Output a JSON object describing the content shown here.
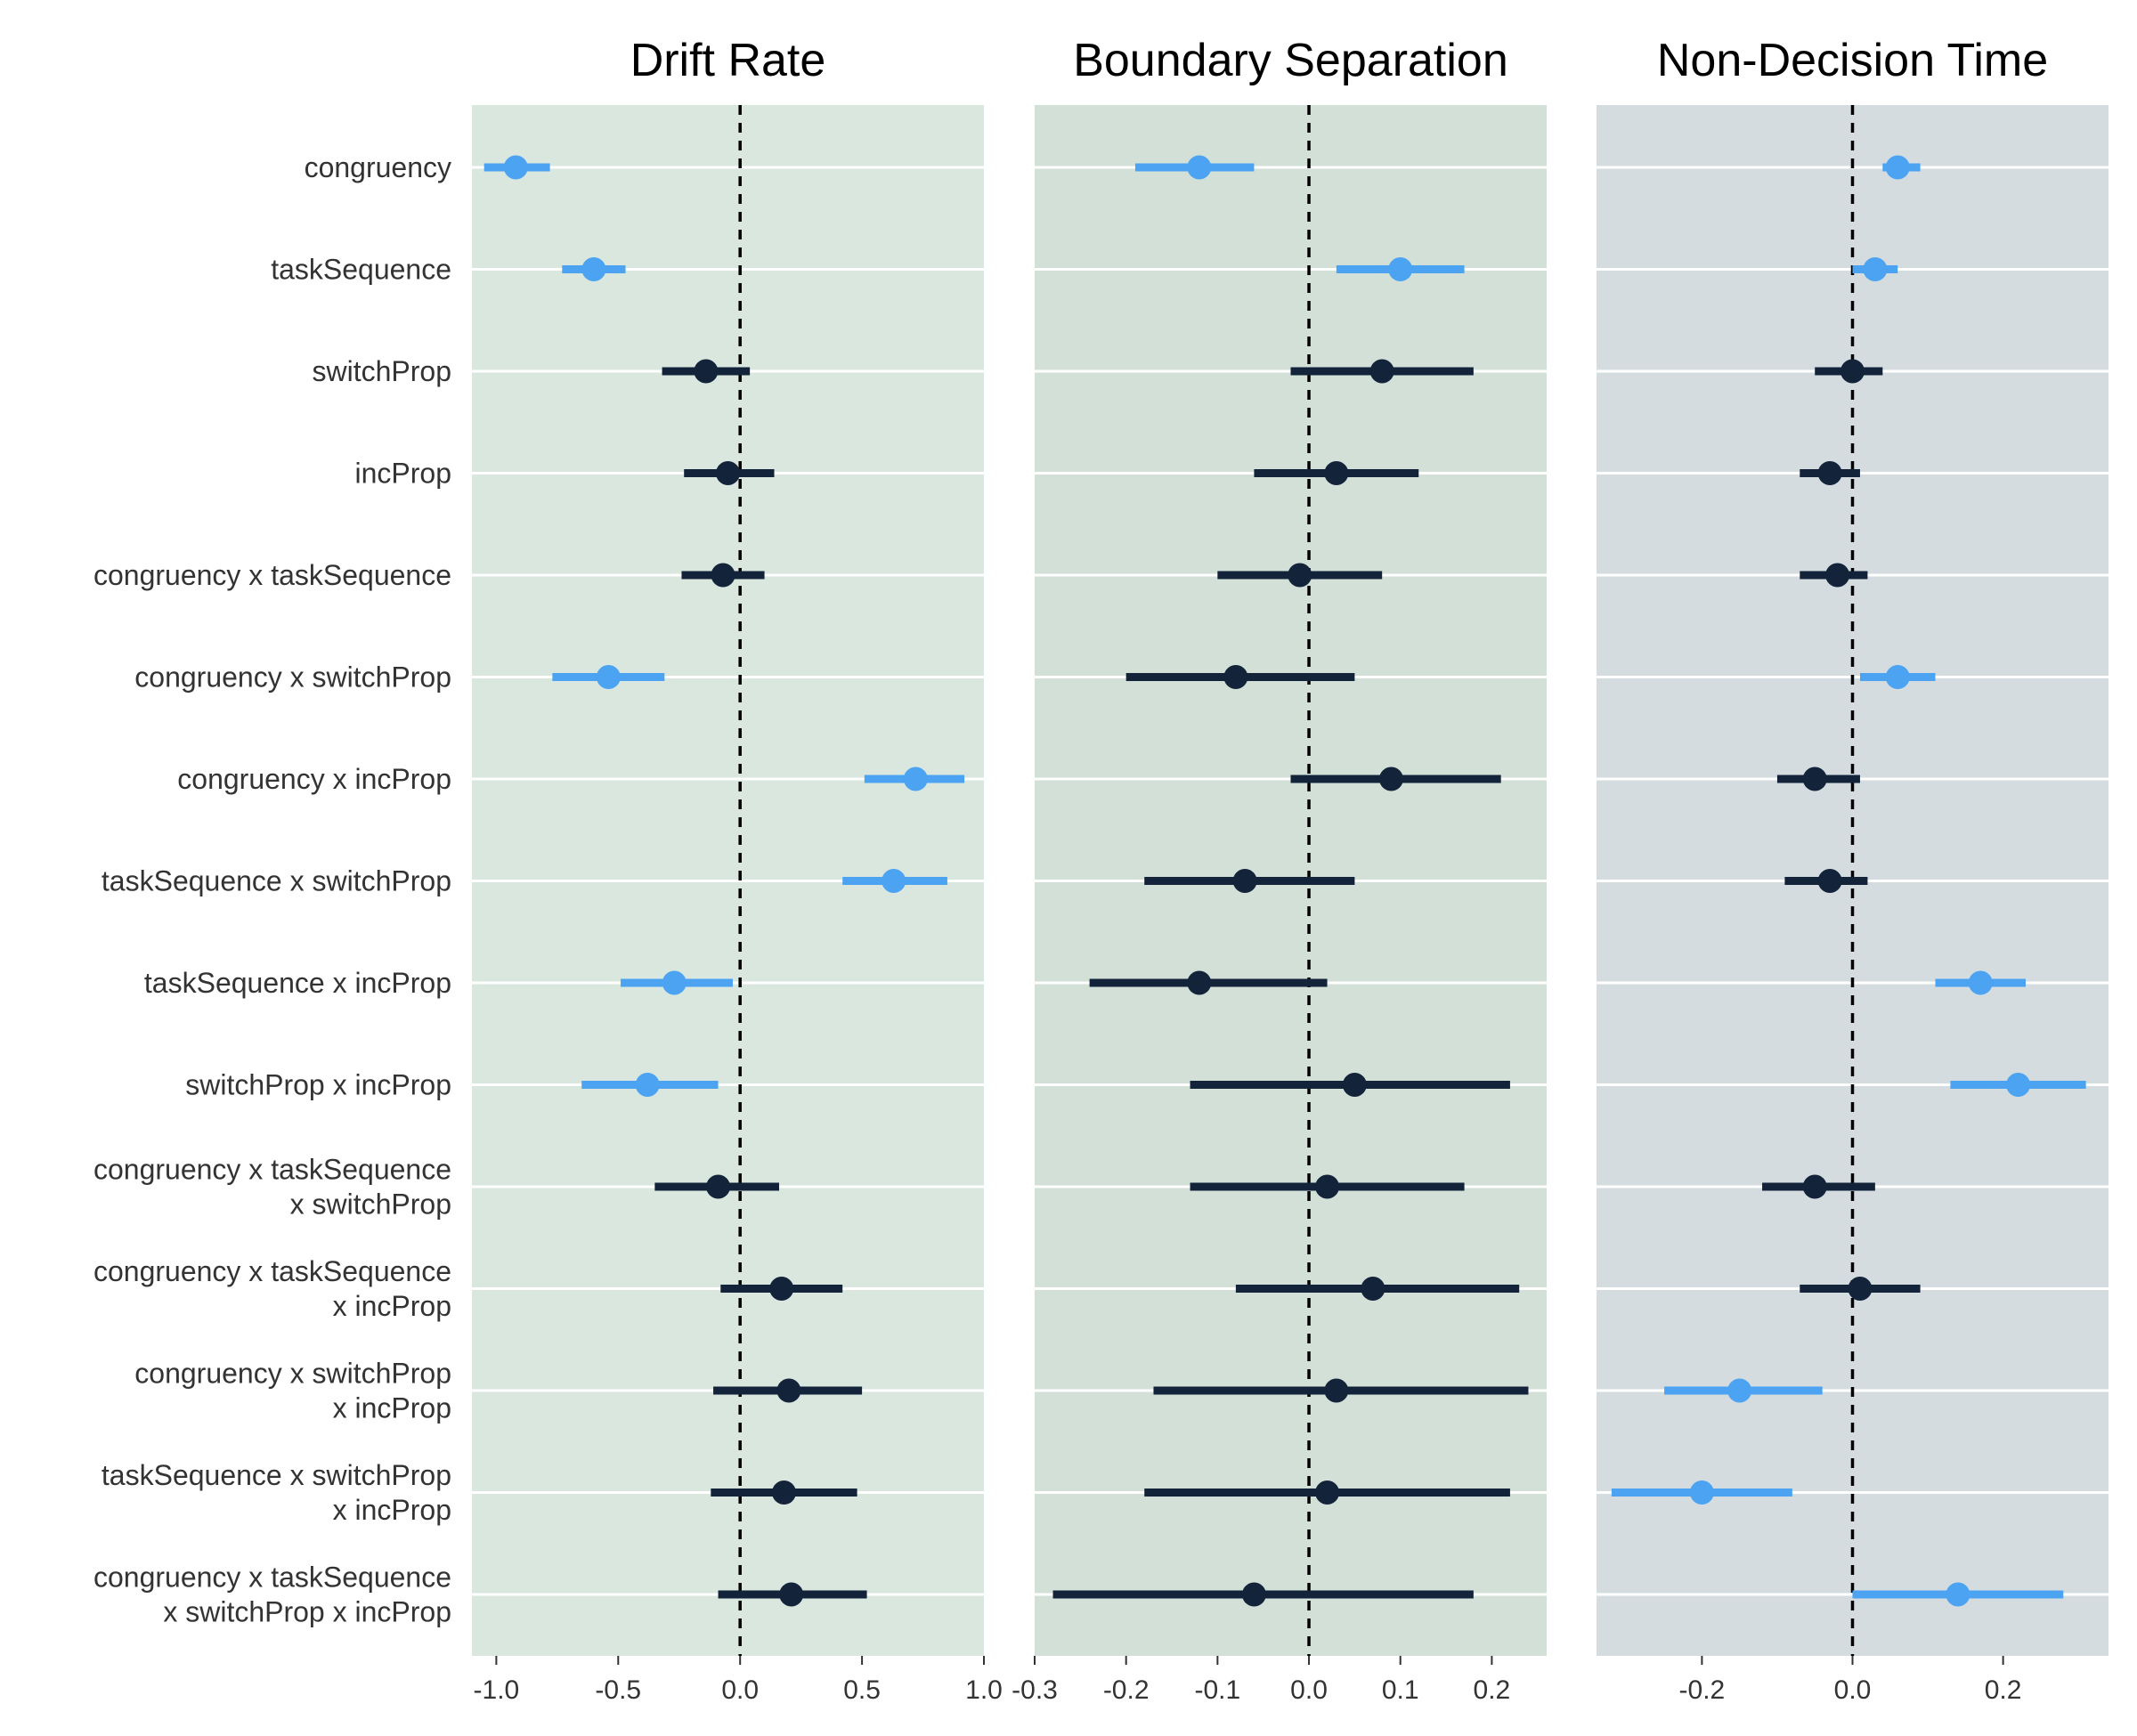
{
  "chart_data": {
    "type": "forest",
    "terms": [
      [
        "congruency"
      ],
      [
        "taskSequence"
      ],
      [
        "switchProp"
      ],
      [
        "incProp"
      ],
      [
        "congruency x taskSequence"
      ],
      [
        "congruency x switchProp"
      ],
      [
        "congruency x incProp"
      ],
      [
        "taskSequence x switchProp"
      ],
      [
        "taskSequence x incProp"
      ],
      [
        "switchProp x incProp"
      ],
      [
        "congruency x taskSequence",
        "x switchProp"
      ],
      [
        "congruency x taskSequence",
        "x incProp"
      ],
      [
        "congruency x switchProp",
        "x incProp"
      ],
      [
        "taskSequence x switchProp",
        "x incProp"
      ],
      [
        "congruency x taskSequence",
        "x switchProp x incProp"
      ]
    ],
    "colors": {
      "significant": "#4ba3f2",
      "nonsignificant": "#13233a",
      "gridline": "#ffffff",
      "zero_line": "#000000"
    },
    "panels": [
      {
        "title": "Drift Rate",
        "background": "#d9e7df",
        "xlim": [
          -1.1,
          1.0
        ],
        "ticks": [
          -1.0,
          -0.5,
          0.0,
          0.5,
          1.0
        ],
        "tick_labels": [
          "-1.0",
          "-0.5",
          "0.0",
          "0.5",
          "1.0"
        ],
        "estimates": [
          -0.92,
          -0.6,
          -0.14,
          -0.05,
          -0.07,
          -0.54,
          0.72,
          0.63,
          -0.27,
          -0.38,
          -0.09,
          0.17,
          0.2,
          0.18,
          0.21
        ],
        "lower": [
          -1.05,
          -0.73,
          -0.32,
          -0.23,
          -0.24,
          -0.77,
          0.51,
          0.42,
          -0.49,
          -0.65,
          -0.35,
          -0.08,
          -0.11,
          -0.12,
          -0.09
        ],
        "upper": [
          -0.78,
          -0.47,
          0.04,
          0.14,
          0.1,
          -0.31,
          0.92,
          0.85,
          -0.03,
          -0.09,
          0.16,
          0.42,
          0.5,
          0.48,
          0.52
        ],
        "significant": [
          true,
          true,
          false,
          false,
          false,
          true,
          true,
          true,
          true,
          true,
          false,
          false,
          false,
          false,
          false
        ]
      },
      {
        "title": "Boundary Separation",
        "background": "#d3e0d8",
        "xlim": [
          -0.3,
          0.26
        ],
        "ticks": [
          -0.3,
          -0.2,
          -0.1,
          0.0,
          0.1,
          0.2
        ],
        "tick_labels": [
          "-0.3",
          "-0.2",
          "-0.1",
          "0.0",
          "0.1",
          "0.2"
        ],
        "estimates": [
          -0.12,
          0.1,
          0.08,
          0.03,
          -0.01,
          -0.08,
          0.09,
          -0.07,
          -0.12,
          0.05,
          0.02,
          0.07,
          0.03,
          0.02,
          -0.06
        ],
        "lower": [
          -0.19,
          0.03,
          -0.02,
          -0.06,
          -0.1,
          -0.2,
          -0.02,
          -0.18,
          -0.24,
          -0.13,
          -0.13,
          -0.08,
          -0.17,
          -0.18,
          -0.28
        ],
        "upper": [
          -0.06,
          0.17,
          0.18,
          0.12,
          0.08,
          0.05,
          0.21,
          0.05,
          0.02,
          0.22,
          0.17,
          0.23,
          0.24,
          0.22,
          0.18
        ],
        "significant": [
          true,
          true,
          false,
          false,
          false,
          false,
          false,
          false,
          false,
          false,
          false,
          false,
          false,
          false,
          false
        ]
      },
      {
        "title": "Non-Decision Time",
        "background": "#d4dce0",
        "xlim": [
          -0.34,
          0.34
        ],
        "ticks": [
          -0.2,
          0.0,
          0.2
        ],
        "tick_labels": [
          "-0.2",
          "0.0",
          "0.2"
        ],
        "estimates": [
          0.06,
          0.03,
          0.0,
          -0.03,
          -0.02,
          0.06,
          -0.05,
          -0.03,
          0.17,
          0.22,
          -0.05,
          0.01,
          -0.15,
          -0.2,
          0.14
        ],
        "lower": [
          0.04,
          0.0,
          -0.05,
          -0.07,
          -0.07,
          0.01,
          -0.1,
          -0.09,
          0.11,
          0.13,
          -0.12,
          -0.07,
          -0.25,
          -0.32,
          0.0
        ],
        "upper": [
          0.09,
          0.06,
          0.04,
          0.01,
          0.02,
          0.11,
          0.01,
          0.02,
          0.23,
          0.31,
          0.03,
          0.09,
          -0.04,
          -0.08,
          0.28
        ],
        "significant": [
          true,
          true,
          false,
          false,
          false,
          true,
          false,
          false,
          true,
          true,
          false,
          false,
          true,
          true,
          true
        ]
      }
    ]
  }
}
